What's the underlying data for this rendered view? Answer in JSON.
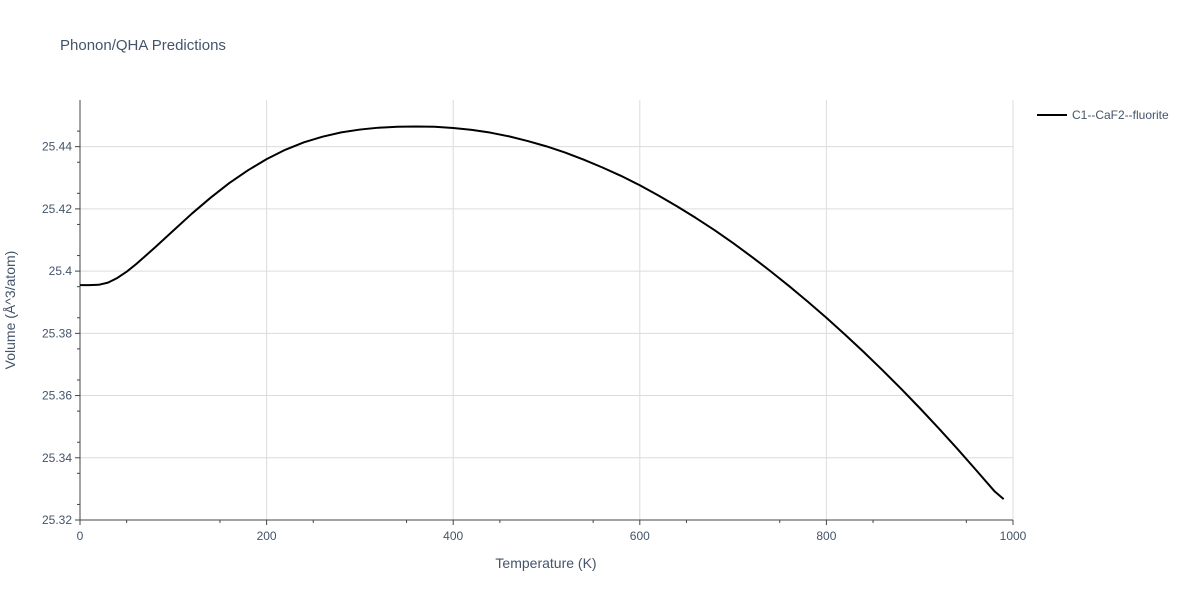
{
  "chart_data": {
    "type": "line",
    "title": "Phonon/QHA Predictions",
    "xlabel": "Temperature (K)",
    "ylabel": "Volume (Å^3/atom)",
    "xlim": [
      0,
      1000
    ],
    "ylim": [
      25.32,
      25.455
    ],
    "xticks": [
      0,
      200,
      400,
      600,
      800,
      1000
    ],
    "xtick_labels": [
      "0",
      "200",
      "400",
      "600",
      "800",
      "1000"
    ],
    "yticks": [
      25.32,
      25.34,
      25.36,
      25.38,
      25.4,
      25.42,
      25.44
    ],
    "ytick_labels": [
      "25.32",
      "25.34",
      "25.36",
      "25.38",
      "25.4",
      "25.42",
      "25.44"
    ],
    "grid": true,
    "legend_position": "top-right",
    "series": [
      {
        "name": "C1--CaF2--fluorite",
        "color": "#000000",
        "x": [
          0,
          10,
          20,
          30,
          40,
          50,
          60,
          80,
          100,
          120,
          140,
          160,
          180,
          200,
          220,
          240,
          260,
          280,
          300,
          320,
          340,
          360,
          380,
          400,
          420,
          440,
          460,
          480,
          500,
          520,
          540,
          560,
          580,
          600,
          620,
          640,
          660,
          680,
          700,
          720,
          740,
          760,
          780,
          800,
          820,
          840,
          860,
          880,
          900,
          920,
          940,
          960,
          980,
          990
        ],
        "y": [
          25.3955,
          25.3955,
          25.3956,
          25.3963,
          25.3978,
          25.3998,
          25.4022,
          25.4075,
          25.413,
          25.4185,
          25.4236,
          25.4283,
          25.4324,
          25.436,
          25.439,
          25.4414,
          25.4432,
          25.4446,
          25.4455,
          25.4461,
          25.4464,
          25.4465,
          25.4464,
          25.446,
          25.4454,
          25.4445,
          25.4433,
          25.4418,
          25.4401,
          25.4381,
          25.4358,
          25.4333,
          25.4306,
          25.4276,
          25.4243,
          25.4208,
          25.4171,
          25.4132,
          25.409,
          25.4046,
          25.4,
          25.3952,
          25.3902,
          25.385,
          25.3796,
          25.374,
          25.3682,
          25.3622,
          25.356,
          25.3496,
          25.343,
          25.3362,
          25.3293,
          25.3267
        ]
      }
    ]
  }
}
